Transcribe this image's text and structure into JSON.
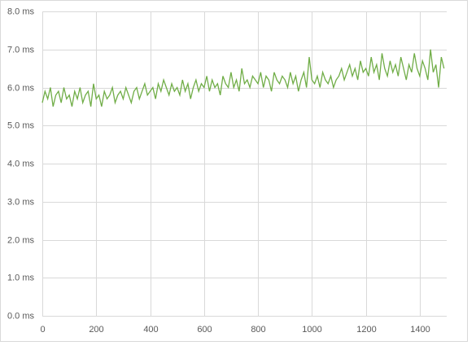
{
  "chart_data": {
    "type": "line",
    "x": [
      0,
      10,
      20,
      30,
      40,
      50,
      60,
      70,
      80,
      90,
      100,
      110,
      120,
      130,
      140,
      150,
      160,
      170,
      180,
      190,
      200,
      210,
      220,
      230,
      240,
      250,
      260,
      270,
      280,
      290,
      300,
      310,
      320,
      330,
      340,
      350,
      360,
      370,
      380,
      390,
      400,
      410,
      420,
      430,
      440,
      450,
      460,
      470,
      480,
      490,
      500,
      510,
      520,
      530,
      540,
      550,
      560,
      570,
      580,
      590,
      600,
      610,
      620,
      630,
      640,
      650,
      660,
      670,
      680,
      690,
      700,
      710,
      720,
      730,
      740,
      750,
      760,
      770,
      780,
      790,
      800,
      810,
      820,
      830,
      840,
      850,
      860,
      870,
      880,
      890,
      900,
      910,
      920,
      930,
      940,
      950,
      960,
      970,
      980,
      990,
      1000,
      1010,
      1020,
      1030,
      1040,
      1050,
      1060,
      1070,
      1080,
      1090,
      1100,
      1110,
      1120,
      1130,
      1140,
      1150,
      1160,
      1170,
      1180,
      1190,
      1200,
      1210,
      1220,
      1230,
      1240,
      1250,
      1260,
      1270,
      1280,
      1290,
      1300,
      1310,
      1320,
      1330,
      1340,
      1350,
      1360,
      1370,
      1380,
      1390,
      1400,
      1410,
      1420,
      1430,
      1440,
      1450,
      1460,
      1470,
      1480,
      1490
    ],
    "series": [
      {
        "color": "#70ad47",
        "values": [
          5.6,
          5.9,
          5.7,
          6.0,
          5.5,
          5.8,
          5.9,
          5.6,
          6.0,
          5.7,
          5.8,
          5.5,
          5.9,
          5.7,
          6.0,
          5.6,
          5.8,
          5.9,
          5.5,
          6.1,
          5.7,
          5.8,
          5.5,
          5.9,
          5.7,
          5.8,
          6.0,
          5.6,
          5.8,
          5.9,
          5.7,
          6.0,
          5.8,
          5.6,
          5.9,
          6.0,
          5.7,
          5.9,
          6.1,
          5.8,
          5.9,
          6.0,
          5.7,
          6.1,
          5.9,
          6.2,
          6.0,
          5.8,
          6.1,
          5.9,
          6.0,
          5.8,
          6.2,
          5.9,
          6.1,
          5.7,
          6.0,
          6.2,
          5.9,
          6.1,
          6.0,
          6.3,
          5.9,
          6.2,
          6.0,
          6.1,
          5.8,
          6.3,
          6.1,
          6.0,
          6.4,
          6.0,
          6.2,
          5.9,
          6.5,
          6.1,
          6.2,
          6.0,
          6.3,
          6.2,
          6.1,
          6.4,
          6.0,
          6.3,
          6.2,
          5.9,
          6.4,
          6.2,
          6.1,
          6.3,
          6.2,
          6.0,
          6.4,
          6.1,
          6.3,
          5.9,
          6.2,
          6.4,
          6.0,
          6.8,
          6.2,
          6.1,
          6.3,
          6.0,
          6.4,
          6.2,
          6.1,
          6.3,
          6.0,
          6.2,
          6.3,
          6.5,
          6.2,
          6.4,
          6.6,
          6.3,
          6.5,
          6.2,
          6.7,
          6.4,
          6.5,
          6.3,
          6.8,
          6.4,
          6.6,
          6.2,
          6.9,
          6.5,
          6.3,
          6.7,
          6.4,
          6.6,
          6.3,
          6.8,
          6.5,
          6.2,
          6.6,
          6.4,
          6.9,
          6.5,
          6.3,
          6.7,
          6.5,
          6.2,
          7.0,
          6.4,
          6.6,
          6.0,
          6.8,
          6.5
        ]
      }
    ],
    "xlim": [
      0,
      1500
    ],
    "xticks": [
      0,
      200,
      400,
      600,
      800,
      1000,
      1200,
      1400
    ],
    "ylim": [
      0,
      8
    ],
    "yticks": [
      {
        "value": 0,
        "label": "0.0 ms"
      },
      {
        "value": 1,
        "label": "1.0 ms"
      },
      {
        "value": 2,
        "label": "2.0 ms"
      },
      {
        "value": 3,
        "label": "3.0 ms"
      },
      {
        "value": 4,
        "label": "4.0 ms"
      },
      {
        "value": 5,
        "label": "5.0 ms"
      },
      {
        "value": 6,
        "label": "6.0 ms"
      },
      {
        "value": 7,
        "label": "7.0 ms"
      },
      {
        "value": 8,
        "label": "8.0 ms"
      }
    ],
    "grid": true
  }
}
